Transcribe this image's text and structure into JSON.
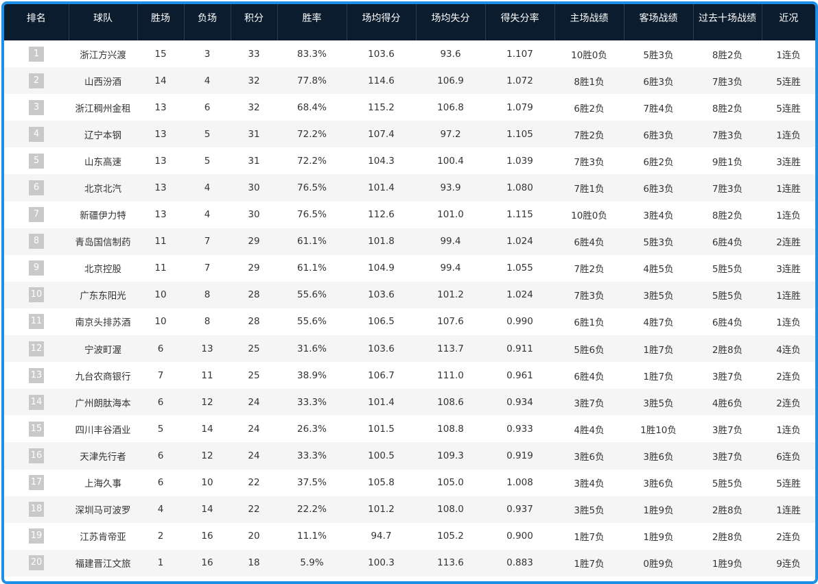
{
  "headers": [
    "排名",
    "球队",
    "胜场",
    "负场",
    "积分",
    "胜率",
    "场均得分",
    "场均失分",
    "得失分率",
    "主场战绩",
    "客场战绩",
    "过去十场战绩",
    "近况"
  ],
  "rows": [
    [
      "1",
      "浙江方兴渡",
      "15",
      "3",
      "33",
      "83.3%",
      "103.6",
      "93.6",
      "1.107",
      "10胜0负",
      "5胜3负",
      "8胜2负",
      "1连负"
    ],
    [
      "2",
      "山西汾酒",
      "14",
      "4",
      "32",
      "77.8%",
      "114.6",
      "106.9",
      "1.072",
      "8胜1负",
      "6胜3负",
      "7胜3负",
      "5连胜"
    ],
    [
      "3",
      "浙江稠州金租",
      "13",
      "6",
      "32",
      "68.4%",
      "115.2",
      "106.8",
      "1.079",
      "6胜2负",
      "7胜4负",
      "8胜2负",
      "5连胜"
    ],
    [
      "4",
      "辽宁本钢",
      "13",
      "5",
      "31",
      "72.2%",
      "107.4",
      "97.2",
      "1.105",
      "7胜2负",
      "6胜3负",
      "7胜3负",
      "1连负"
    ],
    [
      "5",
      "山东高速",
      "13",
      "5",
      "31",
      "72.2%",
      "104.3",
      "100.4",
      "1.039",
      "7胜3负",
      "6胜2负",
      "9胜1负",
      "3连胜"
    ],
    [
      "6",
      "北京北汽",
      "13",
      "4",
      "30",
      "76.5%",
      "101.4",
      "93.9",
      "1.080",
      "7胜1负",
      "6胜3负",
      "7胜3负",
      "1连胜"
    ],
    [
      "7",
      "新疆伊力特",
      "13",
      "4",
      "30",
      "76.5%",
      "112.6",
      "101.0",
      "1.115",
      "10胜0负",
      "3胜4负",
      "8胜2负",
      "1连负"
    ],
    [
      "8",
      "青岛国信制药",
      "11",
      "7",
      "29",
      "61.1%",
      "101.8",
      "99.4",
      "1.024",
      "6胜4负",
      "5胜3负",
      "6胜4负",
      "2连胜"
    ],
    [
      "9",
      "北京控股",
      "11",
      "7",
      "29",
      "61.1%",
      "104.9",
      "99.4",
      "1.055",
      "7胜2负",
      "4胜5负",
      "5胜5负",
      "3连胜"
    ],
    [
      "10",
      "广东东阳光",
      "10",
      "8",
      "28",
      "55.6%",
      "103.6",
      "101.2",
      "1.024",
      "7胜3负",
      "3胜5负",
      "5胜5负",
      "1连胜"
    ],
    [
      "11",
      "南京头排苏酒",
      "10",
      "8",
      "28",
      "55.6%",
      "106.5",
      "107.6",
      "0.990",
      "6胜1负",
      "4胜7负",
      "6胜4负",
      "1连负"
    ],
    [
      "12",
      "宁波町渥",
      "6",
      "13",
      "25",
      "31.6%",
      "103.6",
      "113.7",
      "0.911",
      "5胜6负",
      "1胜7负",
      "2胜8负",
      "4连负"
    ],
    [
      "13",
      "九台农商银行",
      "7",
      "11",
      "25",
      "38.9%",
      "106.7",
      "111.0",
      "0.961",
      "6胜4负",
      "1胜7负",
      "3胜7负",
      "2连负"
    ],
    [
      "14",
      "广州朗肽海本",
      "6",
      "12",
      "24",
      "33.3%",
      "101.4",
      "108.6",
      "0.934",
      "3胜7负",
      "3胜5负",
      "4胜6负",
      "2连负"
    ],
    [
      "15",
      "四川丰谷酒业",
      "5",
      "14",
      "24",
      "26.3%",
      "101.5",
      "108.8",
      "0.933",
      "4胜4负",
      "1胜10负",
      "3胜7负",
      "1连负"
    ],
    [
      "16",
      "天津先行者",
      "6",
      "12",
      "24",
      "33.3%",
      "100.5",
      "109.3",
      "0.919",
      "3胜6负",
      "3胜6负",
      "3胜7负",
      "6连负"
    ],
    [
      "17",
      "上海久事",
      "6",
      "10",
      "22",
      "37.5%",
      "105.8",
      "105.0",
      "1.008",
      "3胜4负",
      "3胜6负",
      "5胜5负",
      "5连胜"
    ],
    [
      "18",
      "深圳马可波罗",
      "4",
      "14",
      "22",
      "22.2%",
      "101.2",
      "108.0",
      "0.937",
      "3胜5负",
      "1胜9负",
      "2胜8负",
      "1连胜"
    ],
    [
      "19",
      "江苏肯帝亚",
      "2",
      "16",
      "20",
      "11.1%",
      "94.7",
      "105.2",
      "0.900",
      "1胜7负",
      "1胜9负",
      "2胜8负",
      "2连负"
    ],
    [
      "20",
      "福建晋江文旅",
      "1",
      "16",
      "18",
      "5.9%",
      "100.3",
      "113.6",
      "0.883",
      "1胜7负",
      "0胜9负",
      "1胜9负",
      "9连负"
    ]
  ],
  "colors": {
    "header_bg": "#0b1c2e",
    "border": "#1e8fe6",
    "rank_box": "#c9c9c9",
    "row_alt": "#f5f5f5"
  }
}
